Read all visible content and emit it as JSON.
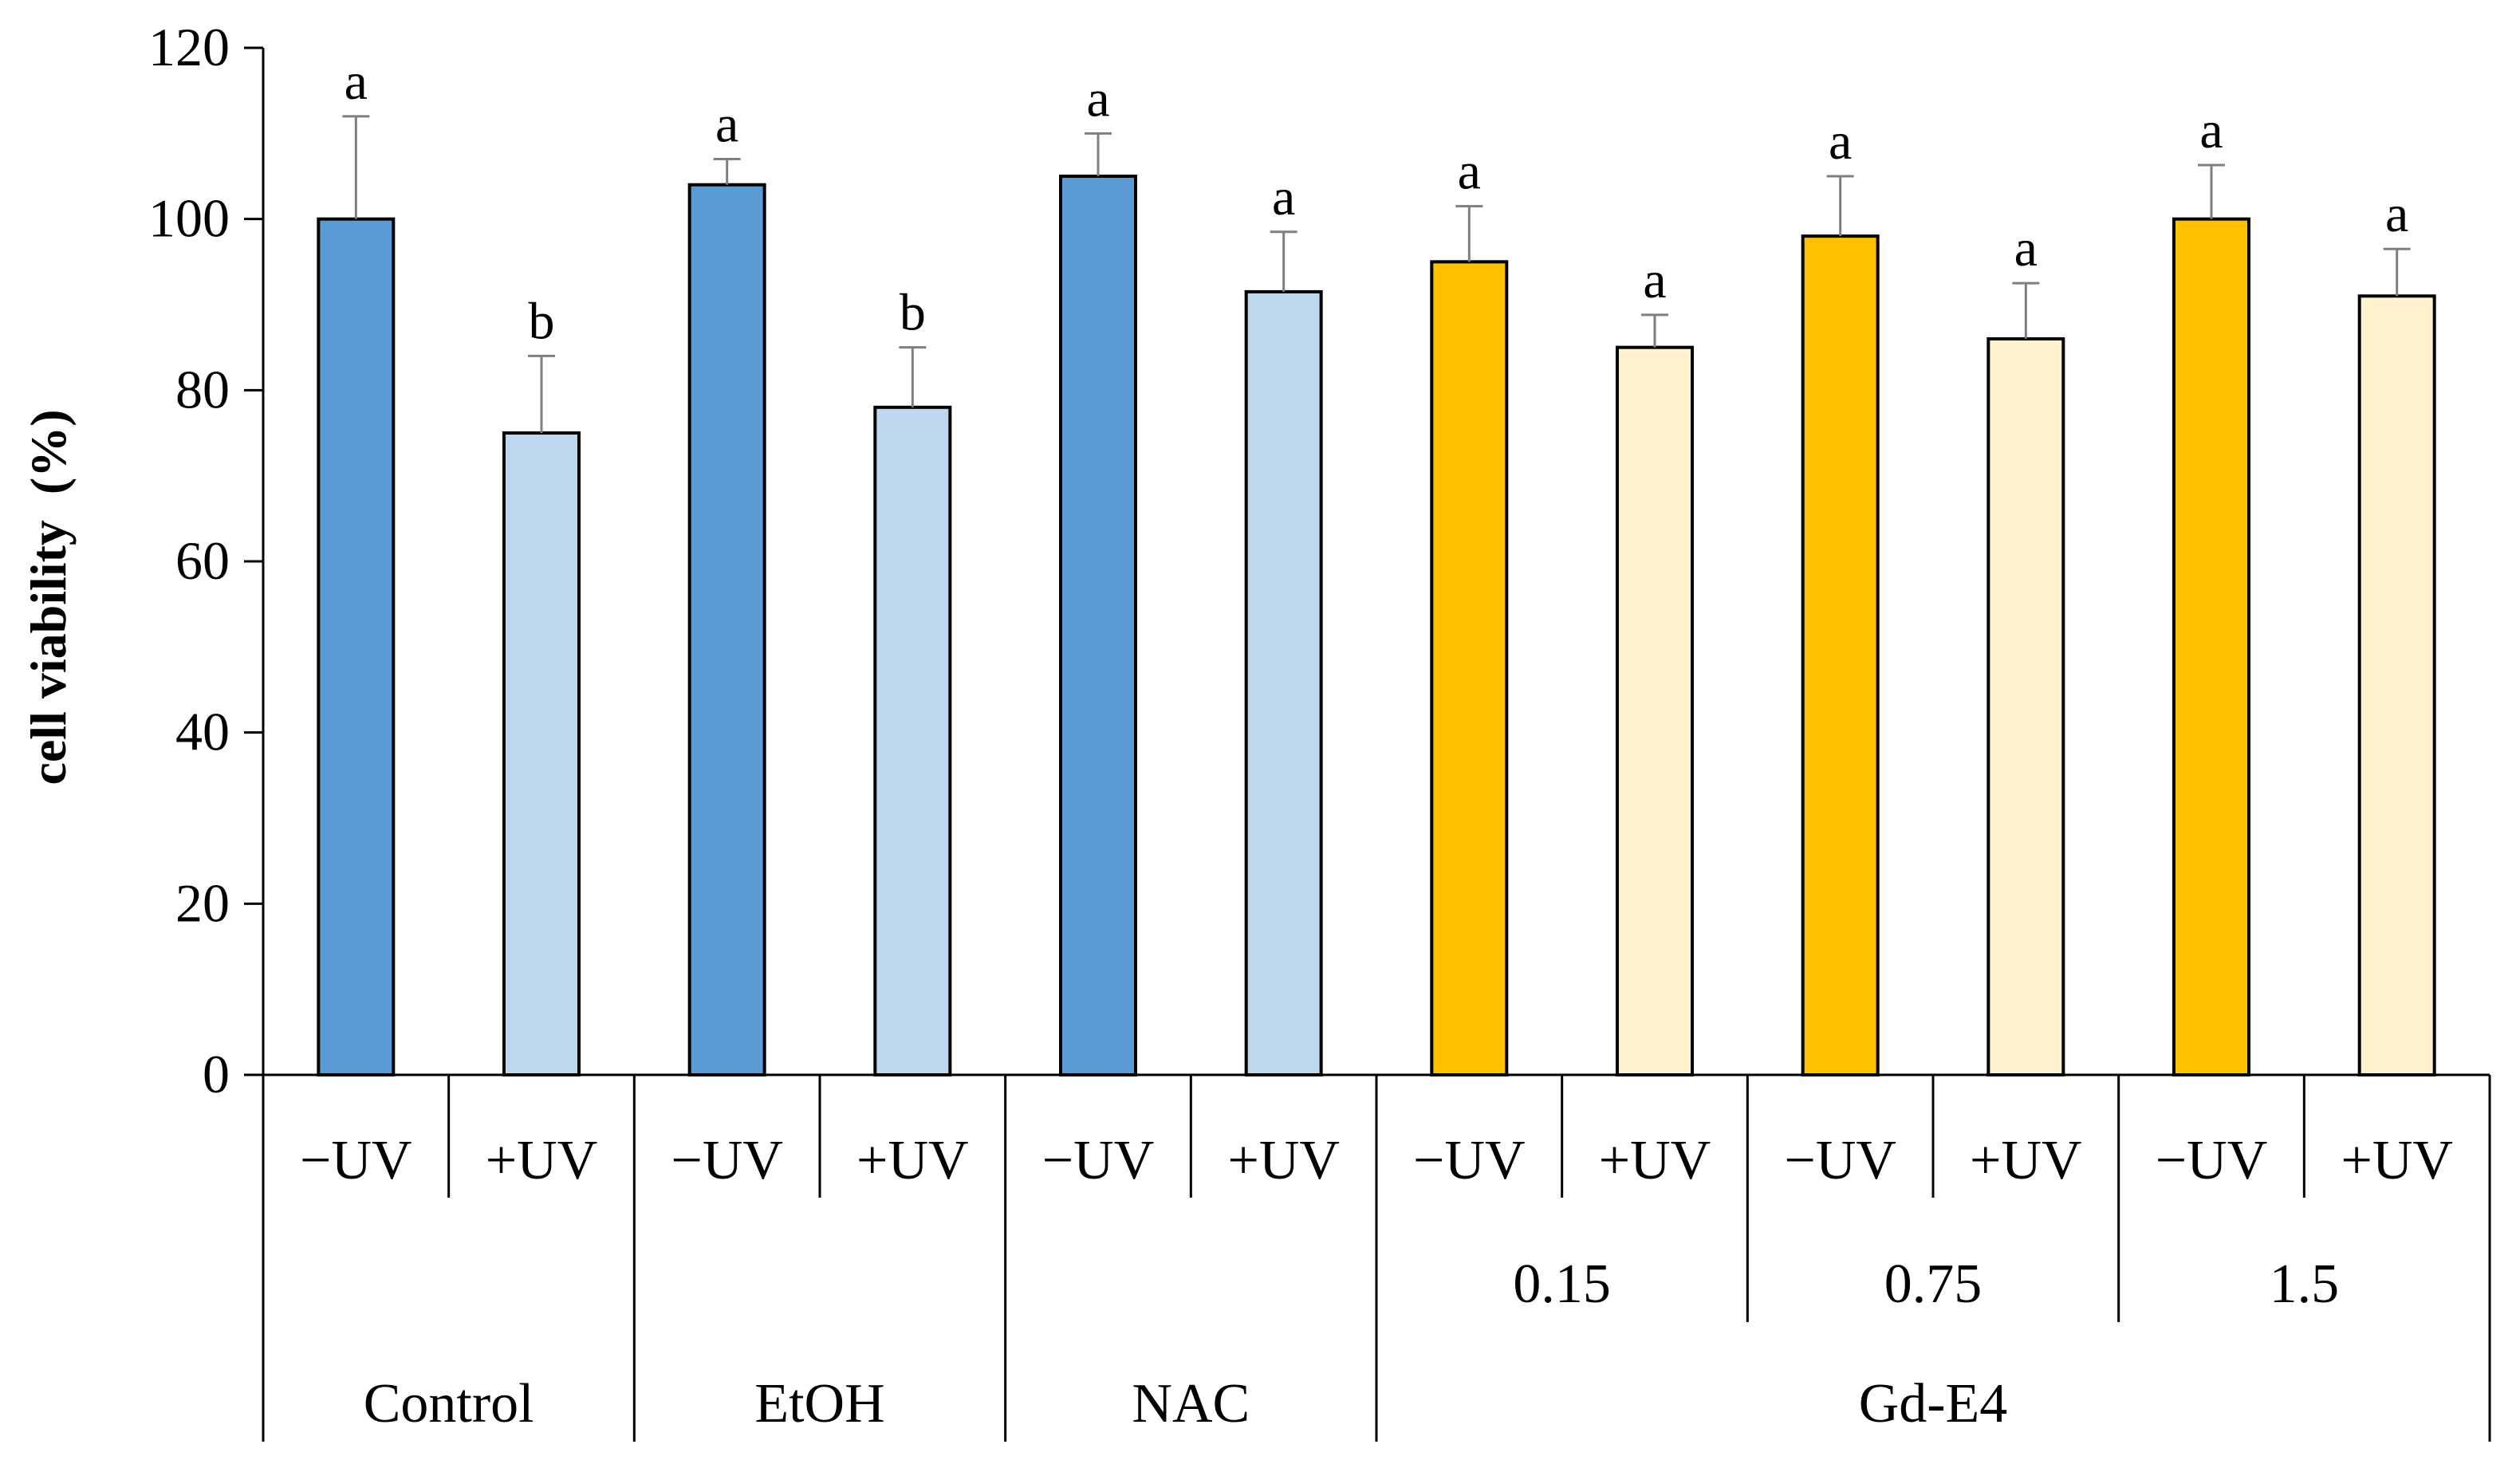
{
  "chart_data": {
    "type": "bar",
    "title": "",
    "xlabel": "",
    "ylabel": "cell viability  (%)",
    "ylim": [
      0,
      120
    ],
    "yticks": [
      0,
      20,
      40,
      60,
      80,
      100,
      120
    ],
    "grid": false,
    "categories": [
      "−UV",
      "+UV",
      "−UV",
      "+UV",
      "−UV",
      "+UV",
      "−UV",
      "+UV",
      "−UV",
      "+UV",
      "−UV",
      "+UV"
    ],
    "values": [
      100,
      75,
      104,
      78,
      105,
      91.5,
      95,
      85,
      98,
      86,
      100,
      91
    ],
    "errors": [
      12,
      9,
      3,
      7,
      5,
      7,
      6.5,
      3.8,
      7,
      6.5,
      6.3,
      5.5
    ],
    "significance": [
      "a",
      "b",
      "a",
      "b",
      "a",
      "a",
      "a",
      "a",
      "a",
      "a",
      "a",
      "a"
    ],
    "bar_colors": [
      "#5b9bd5",
      "#bdd7ee",
      "#5b9bd5",
      "#bdd7ee",
      "#5b9bd5",
      "#bdd7ee",
      "#ffc000",
      "#fff2cc",
      "#ffc000",
      "#fff2cc",
      "#ffc000",
      "#fff2cc"
    ],
    "concentration_groups": [
      {
        "label": "",
        "span": 2
      },
      {
        "label": "",
        "span": 2
      },
      {
        "label": "",
        "span": 2
      },
      {
        "label": "0.15",
        "span": 2
      },
      {
        "label": "0.75",
        "span": 2
      },
      {
        "label": "1.5",
        "span": 2
      }
    ],
    "treatment_groups": [
      {
        "label": "Control",
        "span": 2
      },
      {
        "label": "EtOH",
        "span": 2
      },
      {
        "label": "NAC",
        "span": 2
      },
      {
        "label": "Gd-E4",
        "span": 6
      }
    ]
  }
}
